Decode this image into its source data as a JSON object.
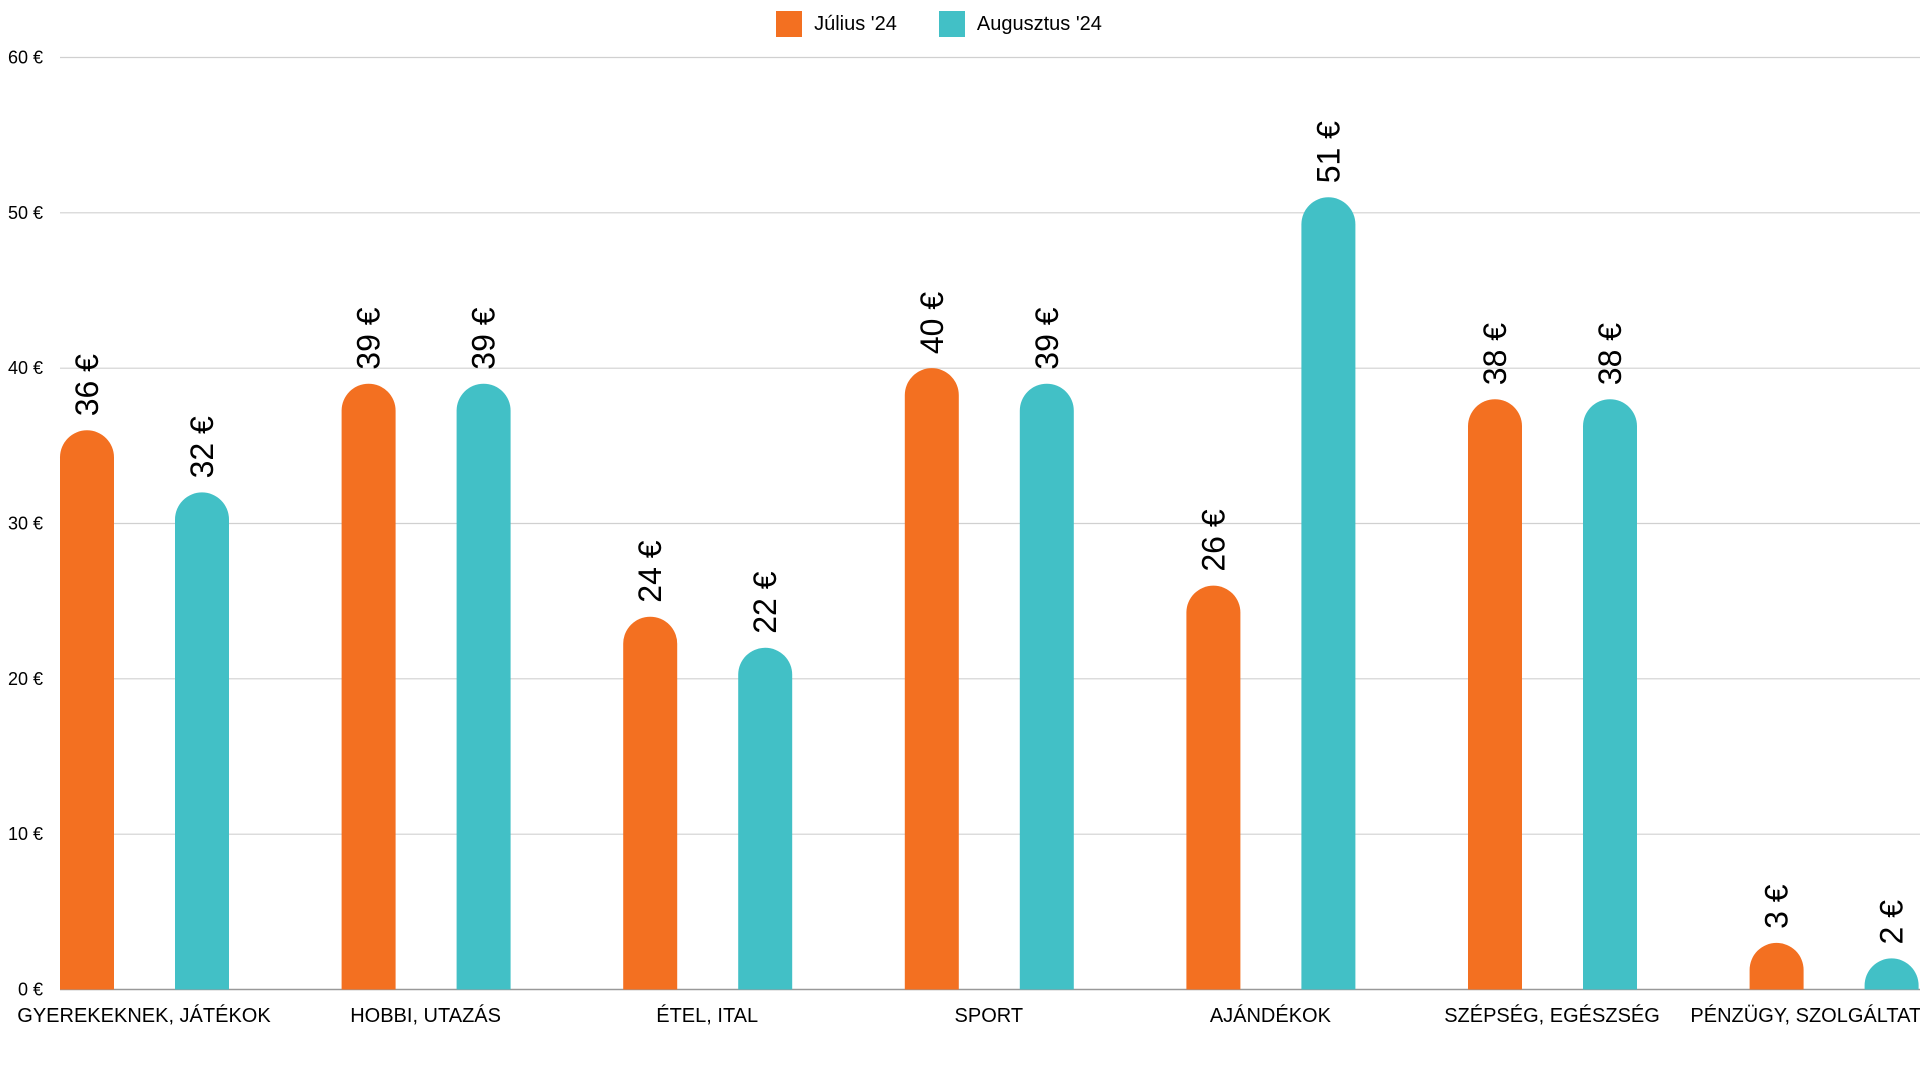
{
  "chart_data": {
    "type": "bar",
    "categories": [
      "GYEREKEKNEK, JÁTÉKOK",
      "HOBBI, UTAZÁS",
      "ÉTEL, ITAL",
      "SPORT",
      "AJÁNDÉKOK",
      "SZÉPSÉG, EGÉSZSÉG",
      "PÉNZÜGY, SZOLGÁLTATÁSOK"
    ],
    "series": [
      {
        "name": "Július '24",
        "color": "#F37021",
        "values": [
          36,
          39,
          24,
          40,
          26,
          38,
          3
        ],
        "labels": [
          "36 €",
          "39 €",
          "24 €",
          "40 €",
          "26 €",
          "38 €",
          "3 €"
        ]
      },
      {
        "name": "Augusztus '24",
        "color": "#42C0C6",
        "values": [
          32,
          39,
          22,
          39,
          51,
          38,
          2
        ],
        "labels": [
          "32 €",
          "39 €",
          "22 €",
          "39 €",
          "51 €",
          "38 €",
          "2 €"
        ]
      }
    ],
    "yticks": [
      "0 €",
      "10 €",
      "20 €",
      "30 €",
      "40 €",
      "50 €",
      "60 €"
    ],
    "ylim": [
      0,
      60
    ],
    "grid": true,
    "legend_position": "top-center",
    "bar_style": "rounded-top"
  }
}
